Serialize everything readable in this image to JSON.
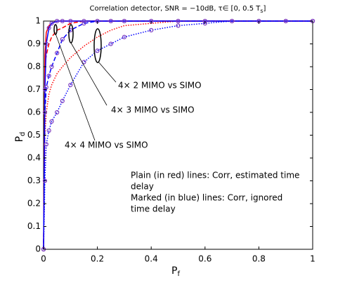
{
  "chart_data": {
    "type": "line",
    "title": "Correlation detector, SNR = −10dB, τ∈ [0, 0.5 T",
    "title_sub": "s",
    "title_end": "]",
    "x_label": "P",
    "x_label_sub": "f",
    "y_label": "P",
    "y_label_sub": "d",
    "x": [
      0,
      0.005,
      0.01,
      0.02,
      0.03,
      0.05,
      0.07,
      0.1,
      0.15,
      0.2,
      0.25,
      0.3,
      0.4,
      0.5,
      0.6,
      0.7,
      0.8,
      0.9,
      1
    ],
    "series": [
      {
        "color": "#ff0000",
        "style": "solid",
        "marker": false,
        "values": [
          0,
          0.85,
          0.95,
          0.98,
          0.99,
          1,
          1,
          1,
          1,
          1,
          1,
          1,
          1,
          1,
          1,
          1,
          1,
          1,
          1
        ]
      },
      {
        "color": "#ff0000",
        "style": "dashed",
        "marker": false,
        "values": [
          0,
          0.8,
          0.85,
          0.9,
          0.93,
          0.96,
          0.97,
          0.99,
          1,
          1,
          1,
          1,
          1,
          1,
          1,
          1,
          1,
          1,
          1
        ]
      },
      {
        "color": "#ff0000",
        "style": "dotted",
        "marker": false,
        "values": [
          0,
          0.5,
          0.6,
          0.68,
          0.72,
          0.77,
          0.8,
          0.84,
          0.89,
          0.93,
          0.96,
          0.98,
          0.99,
          1,
          1,
          1,
          1,
          1,
          1
        ]
      },
      {
        "color": "#0000ff",
        "style": "solid",
        "marker": true,
        "values": [
          0,
          0.7,
          0.9,
          0.97,
          0.99,
          1,
          1,
          1,
          1,
          1,
          1,
          1,
          1,
          1,
          1,
          1,
          1,
          1,
          1
        ]
      },
      {
        "color": "#0000ff",
        "style": "dashed",
        "marker": true,
        "values": [
          0,
          0.6,
          0.71,
          0.76,
          0.8,
          0.86,
          0.92,
          0.96,
          0.99,
          1,
          1,
          1,
          1,
          1,
          1,
          1,
          1,
          1,
          1
        ]
      },
      {
        "color": "#0000ff",
        "style": "dotted",
        "marker": true,
        "values": [
          0,
          0.3,
          0.46,
          0.52,
          0.56,
          0.6,
          0.65,
          0.72,
          0.82,
          0.87,
          0.9,
          0.93,
          0.96,
          0.98,
          0.99,
          1,
          1,
          1,
          1
        ]
      }
    ],
    "marker_color": "#8040c0",
    "xlim": [
      0,
      1
    ],
    "ylim": [
      0,
      1
    ],
    "xticks": [
      0,
      0.2,
      0.4,
      0.6,
      0.8,
      1
    ],
    "yticks": [
      0,
      0.1,
      0.2,
      0.3,
      0.4,
      0.5,
      0.6,
      0.7,
      0.8,
      0.9,
      1
    ],
    "grid": false,
    "annotations": [
      "4× 2 MIMO vs SIMO",
      "4× 3  MIMO vs SIMO",
      "4× 4  MIMO vs SIMO"
    ],
    "note_lines": [
      "Plain (in red) lines: Corr, estimated time",
      "delay",
      "Marked (in blue) lines: Corr, ignored",
      "time delay"
    ]
  }
}
